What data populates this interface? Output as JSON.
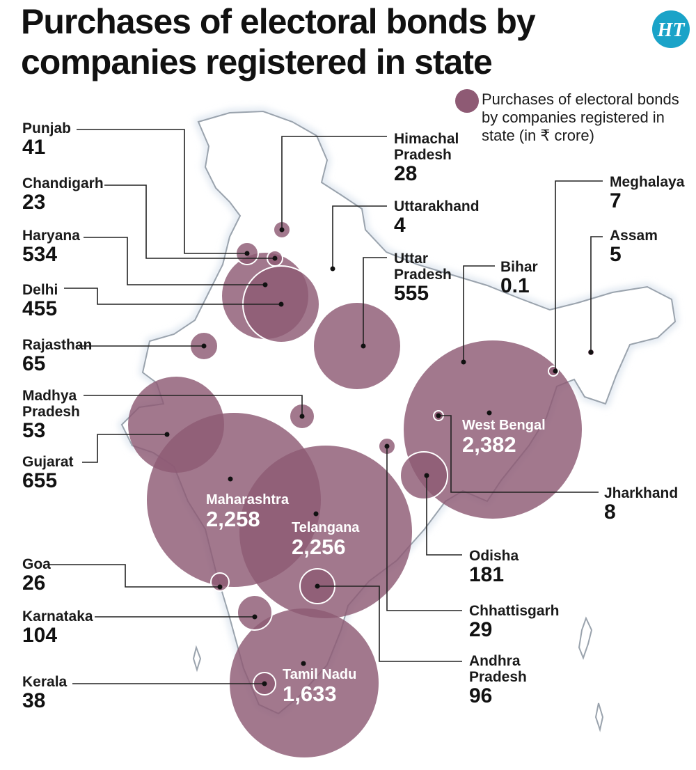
{
  "title": "Purchases of electoral bonds by companies registered in state",
  "logo_text": "HT",
  "legend": "Purchases of electoral bonds by companies registered in state (in ₹ crore)",
  "colors": {
    "bubble": "#8e5a74",
    "map_fill": "#ffffff",
    "map_stroke": "#9aa3ad",
    "map_glow": "#dbe4ee",
    "leader": "#222222"
  },
  "states": [
    {
      "name": "Punjab",
      "value": "41"
    },
    {
      "name": "Chandigarh",
      "value": "23"
    },
    {
      "name": "Haryana",
      "value": "534"
    },
    {
      "name": "Delhi",
      "value": "455"
    },
    {
      "name": "Rajasthan",
      "value": "65"
    },
    {
      "name": "Madhya Pradesh",
      "value": "53"
    },
    {
      "name": "Gujarat",
      "value": "655"
    },
    {
      "name": "Goa",
      "value": "26"
    },
    {
      "name": "Karnataka",
      "value": "104"
    },
    {
      "name": "Kerala",
      "value": "38"
    },
    {
      "name": "Himachal Pradesh",
      "value": "28"
    },
    {
      "name": "Uttarakhand",
      "value": "4"
    },
    {
      "name": "Uttar Pradesh",
      "value": "555"
    },
    {
      "name": "Bihar",
      "value": "0.1"
    },
    {
      "name": "Meghalaya",
      "value": "7"
    },
    {
      "name": "Assam",
      "value": "5"
    },
    {
      "name": "Jharkhand",
      "value": "8"
    },
    {
      "name": "Odisha",
      "value": "181"
    },
    {
      "name": "Chhattisgarh",
      "value": "29"
    },
    {
      "name": "Andhra Pradesh",
      "value": "96"
    },
    {
      "name": "West Bengal",
      "value": "2,382"
    },
    {
      "name": "Maharashtra",
      "value": "2,258"
    },
    {
      "name": "Telangana",
      "value": "2,256"
    },
    {
      "name": "Tamil Nadu",
      "value": "1,633"
    }
  ]
}
